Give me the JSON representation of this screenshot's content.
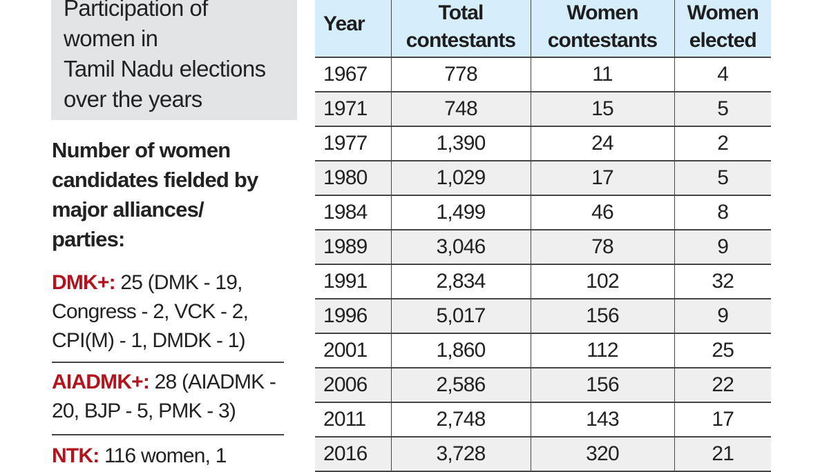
{
  "title": "Participation of\nwomen in\nTamil Nadu elections\nover the years",
  "subhead": "Number of women candidates fielded by major alliances/ parties:",
  "parties": [
    {
      "name": "DMK+:",
      "detail": " 25 (DMK - 19, Congress - 2, VCK - 2, CPI(M) - 1, DMDK - 1)"
    },
    {
      "name": "AIADMK+:",
      "detail": " 28 (AIADMK - 20, BJP - 5, PMK - 3)"
    },
    {
      "name": "NTK:",
      "detail": " 116 women, 1"
    }
  ],
  "colors": {
    "accent_red": "#b3131d",
    "header_bg": "#d6eefb",
    "title_box_bg": "#e3e4e6",
    "stripe_bg": "#efefef"
  },
  "table": {
    "headers": [
      "Year",
      "Total contestants",
      "Women contestants",
      "Women elected"
    ],
    "rows": [
      [
        "1967",
        "778",
        "11",
        "4"
      ],
      [
        "1971",
        "748",
        "15",
        "5"
      ],
      [
        "1977",
        "1,390",
        "24",
        "2"
      ],
      [
        "1980",
        "1,029",
        "17",
        "5"
      ],
      [
        "1984",
        "1,499",
        "46",
        "8"
      ],
      [
        "1989",
        "3,046",
        "78",
        "9"
      ],
      [
        "1991",
        "2,834",
        "102",
        "32"
      ],
      [
        "1996",
        "5,017",
        "156",
        "9"
      ],
      [
        "2001",
        "1,860",
        "112",
        "25"
      ],
      [
        "2006",
        "2,586",
        "156",
        "22"
      ],
      [
        "2011",
        "2,748",
        "143",
        "17"
      ],
      [
        "2016",
        "3,728",
        "320",
        "21"
      ]
    ]
  }
}
